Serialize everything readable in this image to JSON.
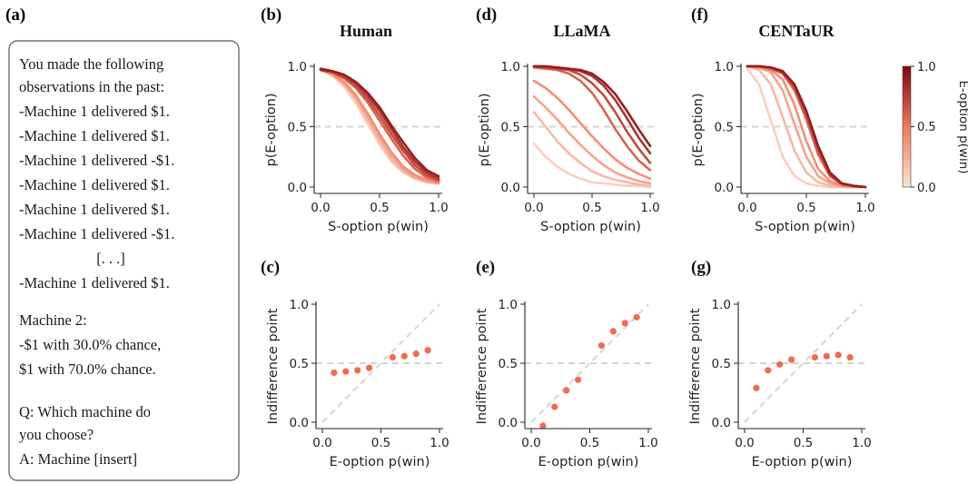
{
  "prompt_panel": {
    "label": "(a)",
    "lines": [
      "You made the following",
      "observations in the past:",
      "-Machine 1 delivered $1.",
      "-Machine 1 delivered $1.",
      "-Machine 1 delivered -$1.",
      "-Machine 1 delivered $1.",
      "-Machine 1 delivered $1.",
      "-Machine 1 delivered -$1.",
      "[. . .]",
      "-Machine 1 delivered $1.",
      "Machine 2:",
      "-$1 with 30.0% chance,",
      "$1 with 70.0% chance.",
      "Q: Which machine do",
      "you choose?",
      "A: Machine [insert]"
    ]
  },
  "colorbar": {
    "label": "E-option p(win)",
    "ticks": [
      "0.0",
      "0.5",
      "1.0"
    ],
    "range": [
      0,
      1
    ],
    "color_low": "#fde3d6",
    "color_high": "#7f0712"
  },
  "highlight_color": "#f26a4f",
  "reference_color": "#d4d4d4",
  "chart_data": [
    {
      "type": "line",
      "panel": "(b)",
      "title": "Human",
      "xlabel": "S-option p(win)",
      "ylabel": "p(E-option)",
      "xlim": [
        0,
        1
      ],
      "ylim": [
        0,
        1
      ],
      "xticks": [
        "0.0",
        "0.5",
        "1.0"
      ],
      "yticks": [
        "0.0",
        "0.5",
        "1.0"
      ],
      "reference_hline": 0.5,
      "series": [
        {
          "color_value": 0.1,
          "x": [
            0,
            0.1,
            0.2,
            0.3,
            0.4,
            0.5,
            0.6,
            0.7,
            0.8,
            0.9,
            1.0
          ],
          "y": [
            0.97,
            0.92,
            0.83,
            0.69,
            0.52,
            0.35,
            0.21,
            0.12,
            0.07,
            0.04,
            0.03
          ]
        },
        {
          "color_value": 0.2,
          "x": [
            0,
            0.1,
            0.2,
            0.3,
            0.4,
            0.5,
            0.6,
            0.7,
            0.8,
            0.9,
            1.0
          ],
          "y": [
            0.97,
            0.93,
            0.85,
            0.72,
            0.55,
            0.38,
            0.23,
            0.13,
            0.07,
            0.04,
            0.03
          ]
        },
        {
          "color_value": 0.3,
          "x": [
            0,
            0.1,
            0.2,
            0.3,
            0.4,
            0.5,
            0.6,
            0.7,
            0.8,
            0.9,
            1.0
          ],
          "y": [
            0.97,
            0.93,
            0.86,
            0.74,
            0.58,
            0.41,
            0.26,
            0.15,
            0.08,
            0.05,
            0.03
          ]
        },
        {
          "color_value": 0.4,
          "x": [
            0,
            0.1,
            0.2,
            0.3,
            0.4,
            0.5,
            0.6,
            0.7,
            0.8,
            0.9,
            1.0
          ],
          "y": [
            0.97,
            0.94,
            0.87,
            0.76,
            0.61,
            0.44,
            0.29,
            0.17,
            0.1,
            0.06,
            0.04
          ]
        },
        {
          "color_value": 0.6,
          "x": [
            0,
            0.1,
            0.2,
            0.3,
            0.4,
            0.5,
            0.6,
            0.7,
            0.8,
            0.9,
            1.0
          ],
          "y": [
            0.97,
            0.95,
            0.9,
            0.82,
            0.7,
            0.55,
            0.4,
            0.26,
            0.15,
            0.08,
            0.05
          ]
        },
        {
          "color_value": 0.7,
          "x": [
            0,
            0.1,
            0.2,
            0.3,
            0.4,
            0.5,
            0.6,
            0.7,
            0.8,
            0.9,
            1.0
          ],
          "y": [
            0.97,
            0.95,
            0.91,
            0.84,
            0.73,
            0.59,
            0.44,
            0.3,
            0.18,
            0.1,
            0.06
          ]
        },
        {
          "color_value": 0.8,
          "x": [
            0,
            0.1,
            0.2,
            0.3,
            0.4,
            0.5,
            0.6,
            0.7,
            0.8,
            0.9,
            1.0
          ],
          "y": [
            0.97,
            0.96,
            0.92,
            0.86,
            0.76,
            0.63,
            0.48,
            0.33,
            0.21,
            0.12,
            0.07
          ]
        },
        {
          "color_value": 0.9,
          "x": [
            0,
            0.1,
            0.2,
            0.3,
            0.4,
            0.5,
            0.6,
            0.7,
            0.8,
            0.9,
            1.0
          ],
          "y": [
            0.98,
            0.96,
            0.93,
            0.87,
            0.78,
            0.66,
            0.51,
            0.37,
            0.24,
            0.14,
            0.09
          ]
        }
      ]
    },
    {
      "type": "line",
      "panel": "(d)",
      "title": "LLaMA",
      "xlabel": "S-option p(win)",
      "ylabel": "p(E-option)",
      "xlim": [
        0,
        1
      ],
      "ylim": [
        0,
        1
      ],
      "xticks": [
        "0.0",
        "0.5",
        "1.0"
      ],
      "yticks": [
        "0.0",
        "0.5",
        "1.0"
      ],
      "reference_hline": 0.5,
      "series": [
        {
          "color_value": 0.1,
          "x": [
            0,
            0.1,
            0.2,
            0.3,
            0.4,
            0.5,
            0.6,
            0.7,
            0.8,
            0.9,
            1.0
          ],
          "y": [
            0.36,
            0.25,
            0.17,
            0.11,
            0.07,
            0.04,
            0.03,
            0.02,
            0.01,
            0.01,
            0.0
          ]
        },
        {
          "color_value": 0.2,
          "x": [
            0,
            0.1,
            0.2,
            0.3,
            0.4,
            0.5,
            0.6,
            0.7,
            0.8,
            0.9,
            1.0
          ],
          "y": [
            0.62,
            0.5,
            0.38,
            0.28,
            0.2,
            0.13,
            0.09,
            0.06,
            0.04,
            0.02,
            0.01
          ]
        },
        {
          "color_value": 0.3,
          "x": [
            0,
            0.1,
            0.2,
            0.3,
            0.4,
            0.5,
            0.6,
            0.7,
            0.8,
            0.9,
            1.0
          ],
          "y": [
            0.75,
            0.66,
            0.56,
            0.45,
            0.35,
            0.26,
            0.18,
            0.12,
            0.08,
            0.05,
            0.03
          ]
        },
        {
          "color_value": 0.4,
          "x": [
            0,
            0.1,
            0.2,
            0.3,
            0.4,
            0.5,
            0.6,
            0.7,
            0.8,
            0.9,
            1.0
          ],
          "y": [
            0.88,
            0.82,
            0.74,
            0.64,
            0.53,
            0.42,
            0.32,
            0.23,
            0.16,
            0.11,
            0.07
          ]
        },
        {
          "color_value": 0.6,
          "x": [
            0,
            0.1,
            0.2,
            0.3,
            0.4,
            0.5,
            0.6,
            0.7,
            0.8,
            0.9,
            1.0
          ],
          "y": [
            0.99,
            0.98,
            0.97,
            0.94,
            0.88,
            0.78,
            0.64,
            0.48,
            0.34,
            0.22,
            0.14
          ]
        },
        {
          "color_value": 0.7,
          "x": [
            0,
            0.1,
            0.2,
            0.3,
            0.4,
            0.5,
            0.6,
            0.7,
            0.8,
            0.9,
            1.0
          ],
          "y": [
            1.0,
            0.99,
            0.98,
            0.97,
            0.93,
            0.86,
            0.76,
            0.62,
            0.46,
            0.32,
            0.2
          ]
        },
        {
          "color_value": 0.8,
          "x": [
            0,
            0.1,
            0.2,
            0.3,
            0.4,
            0.5,
            0.6,
            0.7,
            0.8,
            0.9,
            1.0
          ],
          "y": [
            1.0,
            1.0,
            0.99,
            0.98,
            0.96,
            0.92,
            0.84,
            0.72,
            0.57,
            0.41,
            0.28
          ]
        },
        {
          "color_value": 0.9,
          "x": [
            0,
            0.1,
            0.2,
            0.3,
            0.4,
            0.5,
            0.6,
            0.7,
            0.8,
            0.9,
            1.0
          ],
          "y": [
            1.0,
            1.0,
            0.99,
            0.98,
            0.97,
            0.94,
            0.87,
            0.77,
            0.63,
            0.48,
            0.34
          ]
        }
      ]
    },
    {
      "type": "line",
      "panel": "(f)",
      "title": "CENTaUR",
      "xlabel": "S-option p(win)",
      "ylabel": "p(E-option)",
      "xlim": [
        0,
        1
      ],
      "ylim": [
        0,
        1
      ],
      "xticks": [
        "0.0",
        "0.5",
        "1.0"
      ],
      "yticks": [
        "0.0",
        "0.5",
        "1.0"
      ],
      "reference_hline": 0.5,
      "series": [
        {
          "color_value": 0.1,
          "x": [
            0,
            0.1,
            0.2,
            0.3,
            0.4,
            0.5,
            0.6,
            0.7,
            0.8,
            0.9,
            1.0
          ],
          "y": [
            0.98,
            0.85,
            0.55,
            0.25,
            0.09,
            0.03,
            0.01,
            0.0,
            0.0,
            0.0,
            0.0
          ]
        },
        {
          "color_value": 0.2,
          "x": [
            0,
            0.1,
            0.2,
            0.3,
            0.4,
            0.5,
            0.6,
            0.7,
            0.8,
            0.9,
            1.0
          ],
          "y": [
            1.0,
            0.97,
            0.85,
            0.58,
            0.3,
            0.12,
            0.04,
            0.01,
            0.0,
            0.0,
            0.0
          ]
        },
        {
          "color_value": 0.3,
          "x": [
            0,
            0.1,
            0.2,
            0.3,
            0.4,
            0.5,
            0.6,
            0.7,
            0.8,
            0.9,
            1.0
          ],
          "y": [
            1.0,
            0.99,
            0.95,
            0.8,
            0.52,
            0.25,
            0.09,
            0.03,
            0.01,
            0.0,
            0.0
          ]
        },
        {
          "color_value": 0.4,
          "x": [
            0,
            0.1,
            0.2,
            0.3,
            0.4,
            0.5,
            0.6,
            0.7,
            0.8,
            0.9,
            1.0
          ],
          "y": [
            1.0,
            0.99,
            0.97,
            0.89,
            0.68,
            0.38,
            0.15,
            0.05,
            0.01,
            0.0,
            0.0
          ]
        },
        {
          "color_value": 0.6,
          "x": [
            0,
            0.1,
            0.2,
            0.3,
            0.4,
            0.5,
            0.6,
            0.7,
            0.8,
            0.9,
            1.0
          ],
          "y": [
            1.0,
            1.0,
            0.98,
            0.94,
            0.8,
            0.56,
            0.27,
            0.09,
            0.02,
            0.01,
            0.0
          ]
        },
        {
          "color_value": 0.7,
          "x": [
            0,
            0.1,
            0.2,
            0.3,
            0.4,
            0.5,
            0.6,
            0.7,
            0.8,
            0.9,
            1.0
          ],
          "y": [
            1.0,
            1.0,
            0.99,
            0.95,
            0.83,
            0.6,
            0.31,
            0.1,
            0.03,
            0.01,
            0.0
          ]
        },
        {
          "color_value": 0.8,
          "x": [
            0,
            0.1,
            0.2,
            0.3,
            0.4,
            0.5,
            0.6,
            0.7,
            0.8,
            0.9,
            1.0
          ],
          "y": [
            1.0,
            1.0,
            0.99,
            0.95,
            0.84,
            0.62,
            0.33,
            0.11,
            0.03,
            0.01,
            0.0
          ]
        },
        {
          "color_value": 0.9,
          "x": [
            0,
            0.1,
            0.2,
            0.3,
            0.4,
            0.5,
            0.6,
            0.7,
            0.8,
            0.9,
            1.0
          ],
          "y": [
            1.0,
            1.0,
            0.99,
            0.96,
            0.85,
            0.63,
            0.34,
            0.12,
            0.03,
            0.01,
            0.0
          ]
        }
      ]
    },
    {
      "type": "scatter",
      "panel": "(c)",
      "title": "",
      "xlabel": "E-option p(win)",
      "ylabel": "Indifference point",
      "xlim": [
        0,
        1
      ],
      "ylim": [
        0,
        1
      ],
      "xticks": [
        "0.0",
        "0.5",
        "1.0"
      ],
      "yticks": [
        "0.0",
        "0.5",
        "1.0"
      ],
      "reference_hline": 0.5,
      "reference_diagonal": true,
      "x": [
        0.1,
        0.2,
        0.3,
        0.4,
        0.6,
        0.7,
        0.8,
        0.9
      ],
      "y": [
        0.42,
        0.43,
        0.44,
        0.46,
        0.55,
        0.56,
        0.58,
        0.61
      ]
    },
    {
      "type": "scatter",
      "panel": "(e)",
      "title": "",
      "xlabel": "E-option p(win)",
      "ylabel": "Indifference point",
      "xlim": [
        0,
        1
      ],
      "ylim": [
        0,
        1
      ],
      "xticks": [
        "0.0",
        "0.5",
        "1.0"
      ],
      "yticks": [
        "0.0",
        "0.5",
        "1.0"
      ],
      "reference_hline": 0.5,
      "reference_diagonal": true,
      "x": [
        0.1,
        0.2,
        0.3,
        0.4,
        0.6,
        0.7,
        0.8,
        0.9
      ],
      "y": [
        -0.03,
        0.13,
        0.27,
        0.36,
        0.65,
        0.77,
        0.84,
        0.89
      ]
    },
    {
      "type": "scatter",
      "panel": "(g)",
      "title": "",
      "xlabel": "E-option p(win)",
      "ylabel": "Indifference point",
      "xlim": [
        0,
        1
      ],
      "ylim": [
        0,
        1
      ],
      "xticks": [
        "0.0",
        "0.5",
        "1.0"
      ],
      "yticks": [
        "0.0",
        "0.5",
        "1.0"
      ],
      "reference_hline": 0.5,
      "reference_diagonal": true,
      "x": [
        0.1,
        0.2,
        0.3,
        0.4,
        0.6,
        0.7,
        0.8,
        0.9
      ],
      "y": [
        0.29,
        0.44,
        0.49,
        0.53,
        0.55,
        0.56,
        0.57,
        0.55
      ]
    }
  ]
}
